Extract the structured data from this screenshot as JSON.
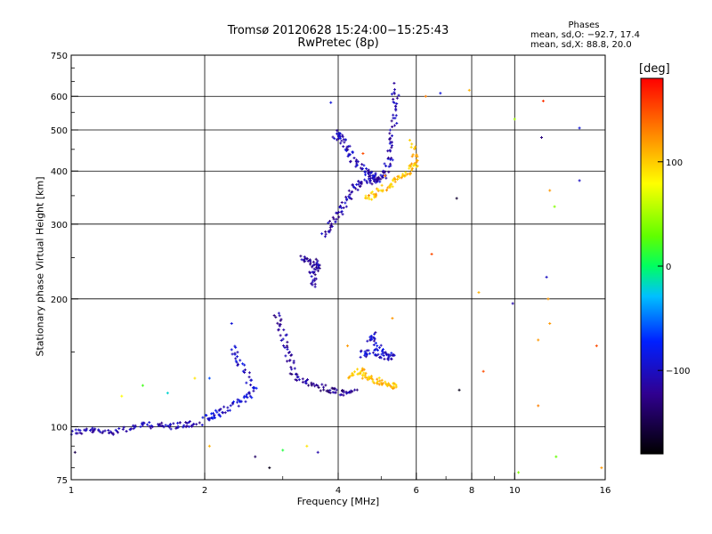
{
  "chart_data": {
    "type": "scatter",
    "title_line1": "Tromsø 20120628 15:24:00−15:25:43",
    "title_line2": "RwPretec (8p)",
    "phases": {
      "heading": "Phases",
      "line_o": "mean, sd,O: −92.7, 17.4",
      "line_x": "mean, sd,X:  88.8, 20.0"
    },
    "xlabel": "Frequency [MHz]",
    "ylabel": "Stationary phase Virtual Height [km]",
    "x_scale": "log",
    "y_scale": "log",
    "xlim": [
      1,
      16
    ],
    "ylim": [
      75,
      750
    ],
    "x_ticks": [
      1,
      2,
      4,
      6,
      8,
      10,
      16
    ],
    "x_tick_labels": [
      "1",
      "2",
      "4",
      "6",
      "8",
      "10",
      "16"
    ],
    "y_ticks": [
      75,
      100,
      200,
      300,
      400,
      500,
      600,
      750
    ],
    "y_tick_labels": [
      "75",
      "100",
      "200",
      "300",
      "400",
      "500",
      "600",
      "750"
    ],
    "grid": true,
    "colorbar": {
      "label": "[deg]",
      "range": [
        -180,
        180
      ],
      "ticks": [
        100,
        0,
        -100
      ],
      "tick_labels": [
        "100",
        "0",
        "−100"
      ]
    },
    "series": [
      {
        "name": "",
        "color_value": -110,
        "trace": [
          [
            1.0,
            97
          ],
          [
            1.1,
            98
          ],
          [
            1.2,
            97
          ],
          [
            1.35,
            99
          ],
          [
            1.5,
            101
          ],
          [
            1.65,
            100
          ],
          [
            1.8,
            101
          ],
          [
            1.95,
            102
          ]
        ]
      },
      {
        "name": "",
        "color_value": -95,
        "trace": [
          [
            2.0,
            104
          ],
          [
            2.1,
            106
          ],
          [
            2.25,
            110
          ],
          [
            2.45,
            116
          ],
          [
            2.6,
            123
          ],
          [
            2.4,
            140
          ],
          [
            2.3,
            155
          ]
        ]
      },
      {
        "name": "",
        "color_value": -120,
        "trace": [
          [
            2.9,
            185
          ],
          [
            3.0,
            165
          ],
          [
            3.1,
            145
          ],
          [
            3.2,
            130
          ],
          [
            3.5,
            126
          ],
          [
            3.8,
            122
          ],
          [
            4.1,
            120
          ],
          [
            4.4,
            121
          ]
        ]
      },
      {
        "name": "",
        "color_value": -115,
        "trace": [
          [
            3.3,
            250
          ],
          [
            3.5,
            245
          ],
          [
            3.6,
            240
          ],
          [
            3.5,
            230
          ],
          [
            3.55,
            215
          ]
        ]
      },
      {
        "name": "",
        "color_value": -110,
        "trace": [
          [
            3.7,
            280
          ],
          [
            3.9,
            305
          ],
          [
            4.1,
            330
          ],
          [
            4.3,
            360
          ],
          [
            4.5,
            375
          ],
          [
            4.8,
            380
          ],
          [
            5.05,
            385
          ],
          [
            5.2,
            420
          ],
          [
            5.3,
            480
          ],
          [
            5.35,
            560
          ],
          [
            5.4,
            640
          ]
        ]
      },
      {
        "name": "",
        "color_value": -105,
        "trace": [
          [
            3.95,
            480
          ],
          [
            4.05,
            490
          ],
          [
            4.2,
            450
          ],
          [
            4.35,
            420
          ],
          [
            4.6,
            400
          ],
          [
            4.8,
            390
          ],
          [
            5.0,
            380
          ]
        ]
      },
      {
        "name": "",
        "color_value": 105,
        "trace": [
          [
            4.2,
            132
          ],
          [
            4.5,
            135
          ],
          [
            4.7,
            130
          ],
          [
            4.9,
            128
          ],
          [
            5.2,
            125
          ],
          [
            5.4,
            124
          ]
        ]
      },
      {
        "name": "",
        "color_value": 105,
        "trace": [
          [
            4.6,
            345
          ],
          [
            4.9,
            355
          ],
          [
            5.2,
            370
          ],
          [
            5.5,
            385
          ],
          [
            5.8,
            400
          ],
          [
            6.0,
            420
          ],
          [
            5.9,
            470
          ]
        ]
      },
      {
        "name": "",
        "color_value": -100,
        "trace": [
          [
            4.5,
            148
          ],
          [
            4.8,
            150
          ],
          [
            5.1,
            147
          ],
          [
            5.3,
            145
          ],
          [
            4.7,
            160
          ],
          [
            4.9,
            165
          ]
        ]
      }
    ],
    "scatter_outliers": [
      [
        1.02,
        87,
        -150
      ],
      [
        1.3,
        118,
        80
      ],
      [
        1.45,
        125,
        20
      ],
      [
        1.65,
        120,
        -20
      ],
      [
        1.9,
        130,
        90
      ],
      [
        2.05,
        130,
        -60
      ],
      [
        2.3,
        175,
        -90
      ],
      [
        2.05,
        90,
        110
      ],
      [
        2.6,
        85,
        -140
      ],
      [
        2.8,
        80,
        -170
      ],
      [
        3.0,
        88,
        10
      ],
      [
        3.4,
        90,
        90
      ],
      [
        3.85,
        580,
        -90
      ],
      [
        3.6,
        87,
        -110
      ],
      [
        4.2,
        155,
        120
      ],
      [
        4.55,
        440,
        150
      ],
      [
        5.3,
        180,
        120
      ],
      [
        5.1,
        390,
        130
      ],
      [
        6.3,
        600,
        130
      ],
      [
        6.5,
        255,
        150
      ],
      [
        6.8,
        610,
        -90
      ],
      [
        7.4,
        345,
        -160
      ],
      [
        7.5,
        122,
        -170
      ],
      [
        7.9,
        620,
        110
      ],
      [
        8.3,
        207,
        110
      ],
      [
        8.5,
        135,
        150
      ],
      [
        9.9,
        195,
        -110
      ],
      [
        10.0,
        530,
        50
      ],
      [
        10.2,
        78,
        40
      ],
      [
        11.5,
        480,
        -130
      ],
      [
        11.6,
        585,
        160
      ],
      [
        11.8,
        225,
        -100
      ],
      [
        11.9,
        200,
        120
      ],
      [
        12.0,
        175,
        120
      ],
      [
        12.0,
        360,
        120
      ],
      [
        12.3,
        330,
        40
      ],
      [
        11.3,
        112,
        130
      ],
      [
        12.4,
        85,
        30
      ],
      [
        14.0,
        505,
        -90
      ],
      [
        14.0,
        380,
        -100
      ],
      [
        15.3,
        155,
        150
      ],
      [
        15.7,
        80,
        120
      ],
      [
        11.3,
        160,
        120
      ]
    ]
  }
}
